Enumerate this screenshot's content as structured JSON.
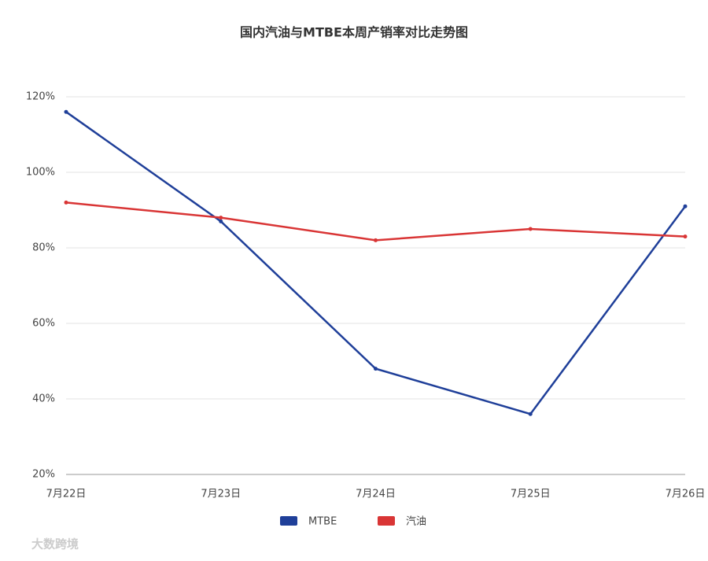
{
  "chart_data": {
    "type": "line",
    "title": "国内汽油与MTBE本周产销率对比走势图",
    "categories": [
      "7月22日",
      "7月23日",
      "7月24日",
      "7月25日",
      "7月26日"
    ],
    "series": [
      {
        "name": "MTBE",
        "color": "#1f3f99",
        "values": [
          116,
          87,
          48,
          36,
          91
        ]
      },
      {
        "name": "汽油",
        "color": "#d93535",
        "values": [
          92,
          88,
          82,
          85,
          83
        ]
      }
    ],
    "ylim": [
      20,
      120
    ],
    "yticks": [
      {
        "value": 20,
        "label": "20%"
      },
      {
        "value": 40,
        "label": "40%"
      },
      {
        "value": 60,
        "label": "60%"
      },
      {
        "value": 80,
        "label": "80%"
      },
      {
        "value": 100,
        "label": "100%"
      },
      {
        "value": 120,
        "label": "120%"
      }
    ],
    "grid": true,
    "legend": "bottom"
  },
  "watermark": "大数跨境"
}
